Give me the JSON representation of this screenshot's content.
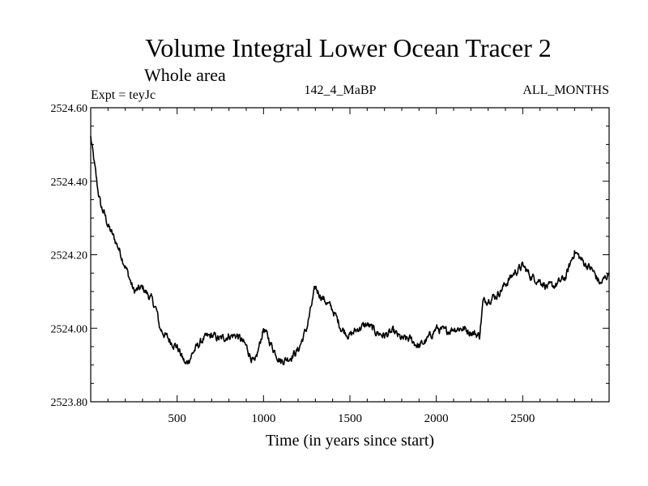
{
  "chart_data": {
    "type": "line",
    "title": "Volume Integral Lower Ocean Tracer 2",
    "subtitle": "Whole area",
    "experiment_label": "Expt = teyJc",
    "center_label": "142_4_MaBP",
    "right_label": "ALL_MONTHS",
    "xlabel": "Time (in years since start)",
    "ylabel": "",
    "xlim": [
      0,
      3000
    ],
    "ylim": [
      2523.8,
      2524.6
    ],
    "x_ticks": [
      500,
      1000,
      1500,
      2000,
      2500
    ],
    "x_tick_labels": [
      "500",
      "1000",
      "1500",
      "2000",
      "2500"
    ],
    "y_ticks": [
      2523.8,
      2524.0,
      2524.2,
      2524.4,
      2524.6
    ],
    "y_tick_labels": [
      "2523.80",
      "2524.00",
      "2524.20",
      "2524.40",
      "2524.60"
    ],
    "grid": false,
    "series": [
      {
        "name": "Volume Integral Lower Ocean Tracer 2",
        "color": "#000000",
        "x": [
          0,
          20,
          40,
          60,
          80,
          100,
          130,
          160,
          200,
          250,
          300,
          350,
          380,
          400,
          450,
          500,
          550,
          600,
          650,
          700,
          750,
          800,
          850,
          900,
          950,
          1000,
          1050,
          1100,
          1150,
          1200,
          1250,
          1300,
          1330,
          1400,
          1450,
          1500,
          1550,
          1600,
          1650,
          1700,
          1750,
          1800,
          1850,
          1900,
          1950,
          2000,
          2050,
          2100,
          2150,
          2200,
          2250,
          2270,
          2300,
          2350,
          2400,
          2450,
          2500,
          2550,
          2600,
          2650,
          2700,
          2750,
          2800,
          2850,
          2900,
          2950,
          3000
        ],
        "y": [
          2524.52,
          2524.45,
          2524.38,
          2524.33,
          2524.31,
          2524.28,
          2524.25,
          2524.22,
          2524.17,
          2524.1,
          2524.11,
          2524.08,
          2524.05,
          2524.0,
          2523.97,
          2523.95,
          2523.9,
          2523.94,
          2523.97,
          2523.98,
          2523.97,
          2523.98,
          2523.98,
          2523.95,
          2523.9,
          2524.0,
          2523.95,
          2523.91,
          2523.92,
          2523.94,
          2524.0,
          2524.11,
          2524.09,
          2524.05,
          2524.0,
          2523.98,
          2524.0,
          2524.01,
          2523.99,
          2523.98,
          2523.99,
          2523.97,
          2523.97,
          2523.95,
          2523.97,
          2524.0,
          2523.99,
          2524.0,
          2524.0,
          2523.99,
          2523.98,
          2524.07,
          2524.08,
          2524.09,
          2524.12,
          2524.15,
          2524.17,
          2524.14,
          2524.13,
          2524.11,
          2524.12,
          2524.14,
          2524.21,
          2524.18,
          2524.16,
          2524.12,
          2524.15
        ]
      }
    ]
  }
}
